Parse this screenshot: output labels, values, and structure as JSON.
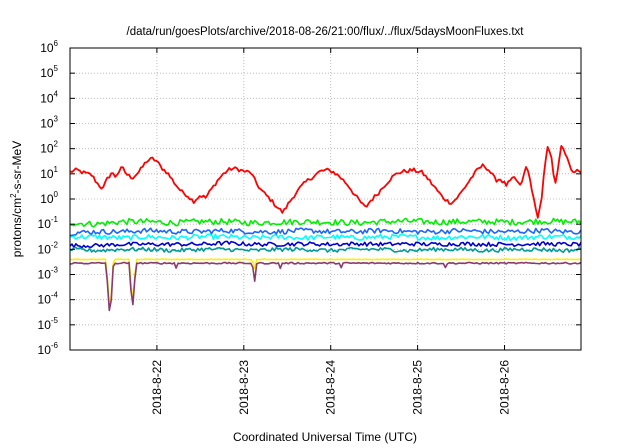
{
  "chart_data": {
    "type": "line",
    "title": "/data/run/goesPlots/archive/2018-08-26/21:00/flux/../flux/5daysMoonFluxes.txt",
    "xlabel": "Coordinated Universal Time (UTC)",
    "ylabel_main": "protons/cm",
    "ylabel_sup": "2",
    "ylabel_rest": "-s-sr-MeV",
    "y_scale": "log",
    "ylim": [
      1e-06,
      1000000.0
    ],
    "y_ticks": [
      {
        "value": -6,
        "base": "10",
        "exp": "-6"
      },
      {
        "value": -5,
        "base": "10",
        "exp": "-5"
      },
      {
        "value": -4,
        "base": "10",
        "exp": "-4"
      },
      {
        "value": -3,
        "base": "10",
        "exp": "-3"
      },
      {
        "value": -2,
        "base": "10",
        "exp": "-2"
      },
      {
        "value": -1,
        "base": "10",
        "exp": "-1"
      },
      {
        "value": 0,
        "base": "10",
        "exp": "0"
      },
      {
        "value": 1,
        "base": "10",
        "exp": "1"
      },
      {
        "value": 2,
        "base": "10",
        "exp": "2"
      },
      {
        "value": 3,
        "base": "10",
        "exp": "3"
      },
      {
        "value": 4,
        "base": "10",
        "exp": "4"
      },
      {
        "value": 5,
        "base": "10",
        "exp": "5"
      },
      {
        "value": 6,
        "base": "10",
        "exp": "6"
      }
    ],
    "x_unit": "days since 2018-08-21 00:00 UTC",
    "xlim": [
      0.0,
      5.88
    ],
    "x_ticks": [
      {
        "value": 1,
        "label": "2018-8-22"
      },
      {
        "value": 2,
        "label": "2018-8-23"
      },
      {
        "value": 3,
        "label": "2018-8-24"
      },
      {
        "value": 4,
        "label": "2018-8-25"
      },
      {
        "value": 5,
        "label": "2018-8-26"
      }
    ],
    "grid": true,
    "series": [
      {
        "color": "#ff0000",
        "noise": 0.08,
        "points": [
          [
            0.0,
            1.08
          ],
          [
            0.08,
            1.15
          ],
          [
            0.15,
            1.05
          ],
          [
            0.25,
            0.95
          ],
          [
            0.32,
            0.6
          ],
          [
            0.38,
            0.4
          ],
          [
            0.42,
            0.75
          ],
          [
            0.48,
            1.05
          ],
          [
            0.52,
            0.9
          ],
          [
            0.6,
            1.25
          ],
          [
            0.66,
            0.95
          ],
          [
            0.72,
            0.85
          ],
          [
            0.8,
            1.1
          ],
          [
            0.88,
            1.5
          ],
          [
            0.95,
            1.6
          ],
          [
            1.0,
            1.5
          ],
          [
            1.05,
            1.25
          ],
          [
            1.12,
            1.05
          ],
          [
            1.2,
            0.65
          ],
          [
            1.28,
            0.3
          ],
          [
            1.35,
            0.15
          ],
          [
            1.42,
            -0.1
          ],
          [
            1.5,
            0.15
          ],
          [
            1.56,
            0.05
          ],
          [
            1.62,
            0.35
          ],
          [
            1.7,
            0.75
          ],
          [
            1.78,
            1.05
          ],
          [
            1.85,
            1.2
          ],
          [
            1.92,
            1.2
          ],
          [
            2.0,
            1.1
          ],
          [
            2.08,
            1.05
          ],
          [
            2.15,
            0.6
          ],
          [
            2.2,
            0.35
          ],
          [
            2.3,
            0.0
          ],
          [
            2.38,
            -0.3
          ],
          [
            2.45,
            -0.55
          ],
          [
            2.5,
            -0.25
          ],
          [
            2.58,
            0.15
          ],
          [
            2.65,
            0.45
          ],
          [
            2.72,
            0.7
          ],
          [
            2.8,
            0.9
          ],
          [
            2.88,
            1.1
          ],
          [
            2.95,
            1.15
          ],
          [
            3.02,
            1.1
          ],
          [
            3.1,
            0.9
          ],
          [
            3.2,
            0.55
          ],
          [
            3.28,
            0.15
          ],
          [
            3.35,
            -0.15
          ],
          [
            3.4,
            -0.35
          ],
          [
            3.45,
            -0.1
          ],
          [
            3.55,
            0.25
          ],
          [
            3.62,
            0.55
          ],
          [
            3.7,
            0.85
          ],
          [
            3.78,
            1.05
          ],
          [
            3.85,
            1.1
          ],
          [
            3.95,
            1.15
          ],
          [
            4.05,
            1.05
          ],
          [
            4.12,
            0.8
          ],
          [
            4.2,
            0.45
          ],
          [
            4.28,
            0.1
          ],
          [
            4.35,
            -0.1
          ],
          [
            4.4,
            -0.15
          ],
          [
            4.48,
            0.15
          ],
          [
            4.55,
            0.5
          ],
          [
            4.62,
            0.85
          ],
          [
            4.7,
            1.2
          ],
          [
            4.76,
            1.35
          ],
          [
            4.82,
            1.15
          ],
          [
            4.9,
            0.75
          ],
          [
            4.95,
            0.8
          ],
          [
            5.02,
            0.55
          ],
          [
            5.08,
            0.75
          ],
          [
            5.12,
            0.85
          ],
          [
            5.18,
            0.5
          ],
          [
            5.22,
            0.9
          ],
          [
            5.25,
            1.3
          ],
          [
            5.28,
            1.0
          ],
          [
            5.32,
            0.3
          ],
          [
            5.35,
            -0.3
          ],
          [
            5.38,
            -0.7
          ],
          [
            5.42,
            -0.2
          ],
          [
            5.46,
            1.2
          ],
          [
            5.5,
            2.1
          ],
          [
            5.54,
            1.6
          ],
          [
            5.58,
            0.6
          ],
          [
            5.62,
            1.3
          ],
          [
            5.66,
            2.2
          ],
          [
            5.7,
            1.8
          ],
          [
            5.74,
            1.4
          ],
          [
            5.78,
            1.0
          ],
          [
            5.82,
            1.15
          ],
          [
            5.86,
            1.05
          ],
          [
            5.88,
            1.0
          ]
        ]
      },
      {
        "color": "#00ee00",
        "noise": 0.12,
        "points": [
          [
            0.0,
            -0.95
          ],
          [
            0.3,
            -1.0
          ],
          [
            0.6,
            -0.9
          ],
          [
            0.9,
            -0.9
          ],
          [
            1.2,
            -0.95
          ],
          [
            1.5,
            -0.9
          ],
          [
            1.8,
            -0.9
          ],
          [
            2.1,
            -0.95
          ],
          [
            2.4,
            -0.92
          ],
          [
            2.7,
            -0.9
          ],
          [
            3.0,
            -0.92
          ],
          [
            3.3,
            -0.95
          ],
          [
            3.6,
            -0.9
          ],
          [
            3.9,
            -0.88
          ],
          [
            4.2,
            -0.92
          ],
          [
            4.5,
            -0.9
          ],
          [
            4.8,
            -0.9
          ],
          [
            5.1,
            -0.92
          ],
          [
            5.4,
            -0.88
          ],
          [
            5.7,
            -0.9
          ],
          [
            5.88,
            -0.9
          ]
        ]
      },
      {
        "color": "#00ffff",
        "noise": 0.1,
        "points": [
          [
            0.0,
            -1.5
          ],
          [
            0.3,
            -1.5
          ],
          [
            0.6,
            -1.55
          ],
          [
            0.9,
            -1.5
          ],
          [
            1.2,
            -1.55
          ],
          [
            1.5,
            -1.5
          ],
          [
            1.8,
            -1.5
          ],
          [
            2.1,
            -1.55
          ],
          [
            2.4,
            -1.5
          ],
          [
            2.7,
            -1.55
          ],
          [
            3.0,
            -1.5
          ],
          [
            3.3,
            -1.55
          ],
          [
            3.6,
            -1.5
          ],
          [
            3.9,
            -1.5
          ],
          [
            4.2,
            -1.55
          ],
          [
            4.5,
            -1.5
          ],
          [
            4.8,
            -1.5
          ],
          [
            5.1,
            -1.55
          ],
          [
            5.4,
            -1.5
          ],
          [
            5.7,
            -1.5
          ],
          [
            5.88,
            -1.5
          ]
        ]
      },
      {
        "color": "#1e64ff",
        "noise": 0.1,
        "points": [
          [
            0.0,
            -1.35
          ],
          [
            0.3,
            -1.3
          ],
          [
            0.6,
            -1.3
          ],
          [
            0.9,
            -1.25
          ],
          [
            1.2,
            -1.3
          ],
          [
            1.5,
            -1.3
          ],
          [
            1.8,
            -1.25
          ],
          [
            2.1,
            -1.3
          ],
          [
            2.4,
            -1.3
          ],
          [
            2.7,
            -1.25
          ],
          [
            3.0,
            -1.3
          ],
          [
            3.3,
            -1.3
          ],
          [
            3.6,
            -1.25
          ],
          [
            3.9,
            -1.3
          ],
          [
            4.2,
            -1.3
          ],
          [
            4.5,
            -1.25
          ],
          [
            4.8,
            -1.3
          ],
          [
            5.1,
            -1.3
          ],
          [
            5.4,
            -1.25
          ],
          [
            5.7,
            -1.3
          ],
          [
            5.88,
            -1.3
          ]
        ]
      },
      {
        "color": "#0000cc",
        "noise": 0.08,
        "points": [
          [
            0.0,
            -1.85
          ],
          [
            0.3,
            -1.85
          ],
          [
            0.6,
            -1.8
          ],
          [
            0.9,
            -1.8
          ],
          [
            1.2,
            -1.8
          ],
          [
            1.5,
            -1.8
          ],
          [
            1.8,
            -1.75
          ],
          [
            2.1,
            -1.8
          ],
          [
            2.4,
            -1.8
          ],
          [
            2.7,
            -1.78
          ],
          [
            3.0,
            -1.8
          ],
          [
            3.3,
            -1.78
          ],
          [
            3.6,
            -1.8
          ],
          [
            3.9,
            -1.78
          ],
          [
            4.2,
            -1.8
          ],
          [
            4.5,
            -1.78
          ],
          [
            4.8,
            -1.8
          ],
          [
            5.1,
            -1.8
          ],
          [
            5.4,
            -1.78
          ],
          [
            5.7,
            -1.8
          ],
          [
            5.88,
            -1.8
          ]
        ]
      },
      {
        "color": "#009999",
        "noise": 0.08,
        "points": [
          [
            0.0,
            -2.0
          ],
          [
            0.3,
            -2.05
          ],
          [
            0.6,
            -2.0
          ],
          [
            0.9,
            -2.0
          ],
          [
            1.2,
            -2.05
          ],
          [
            1.5,
            -2.0
          ],
          [
            1.8,
            -2.0
          ],
          [
            2.1,
            -2.05
          ],
          [
            2.4,
            -2.0
          ],
          [
            2.7,
            -2.0
          ],
          [
            3.0,
            -2.05
          ],
          [
            3.3,
            -2.0
          ],
          [
            3.6,
            -2.0
          ],
          [
            3.9,
            -2.05
          ],
          [
            4.2,
            -2.0
          ],
          [
            4.5,
            -2.0
          ],
          [
            4.8,
            -2.05
          ],
          [
            5.1,
            -2.0
          ],
          [
            5.4,
            -2.0
          ],
          [
            5.7,
            -2.05
          ],
          [
            5.88,
            -2.0
          ]
        ]
      },
      {
        "color": "#ffee00",
        "noise": 0.01,
        "points": [
          [
            0.0,
            -2.4
          ],
          [
            0.42,
            -2.4
          ],
          [
            0.44,
            -3.8
          ],
          [
            0.46,
            -4.5
          ],
          [
            0.48,
            -3.6
          ],
          [
            0.5,
            -2.4
          ],
          [
            0.68,
            -2.4
          ],
          [
            0.7,
            -3.3
          ],
          [
            0.72,
            -4.2
          ],
          [
            0.74,
            -3.3
          ],
          [
            0.76,
            -2.4
          ],
          [
            2.1,
            -2.4
          ],
          [
            2.12,
            -2.9
          ],
          [
            2.14,
            -2.4
          ],
          [
            5.88,
            -2.4
          ]
        ]
      },
      {
        "color": "#8b3a6e",
        "noise": 0.03,
        "points": [
          [
            0.0,
            -2.55
          ],
          [
            0.42,
            -2.55
          ],
          [
            0.44,
            -4.0
          ],
          [
            0.46,
            -4.7
          ],
          [
            0.48,
            -3.8
          ],
          [
            0.5,
            -2.55
          ],
          [
            0.68,
            -2.55
          ],
          [
            0.7,
            -3.6
          ],
          [
            0.72,
            -4.4
          ],
          [
            0.74,
            -3.4
          ],
          [
            0.76,
            -2.55
          ],
          [
            1.2,
            -2.55
          ],
          [
            1.22,
            -2.75
          ],
          [
            1.24,
            -2.55
          ],
          [
            2.1,
            -2.55
          ],
          [
            2.12,
            -3.6
          ],
          [
            2.14,
            -2.55
          ],
          [
            2.4,
            -2.55
          ],
          [
            2.42,
            -2.75
          ],
          [
            2.44,
            -2.55
          ],
          [
            3.1,
            -2.55
          ],
          [
            3.12,
            -2.75
          ],
          [
            3.14,
            -2.55
          ],
          [
            4.3,
            -2.55
          ],
          [
            4.32,
            -2.75
          ],
          [
            4.34,
            -2.55
          ],
          [
            5.88,
            -2.55
          ]
        ]
      }
    ]
  }
}
